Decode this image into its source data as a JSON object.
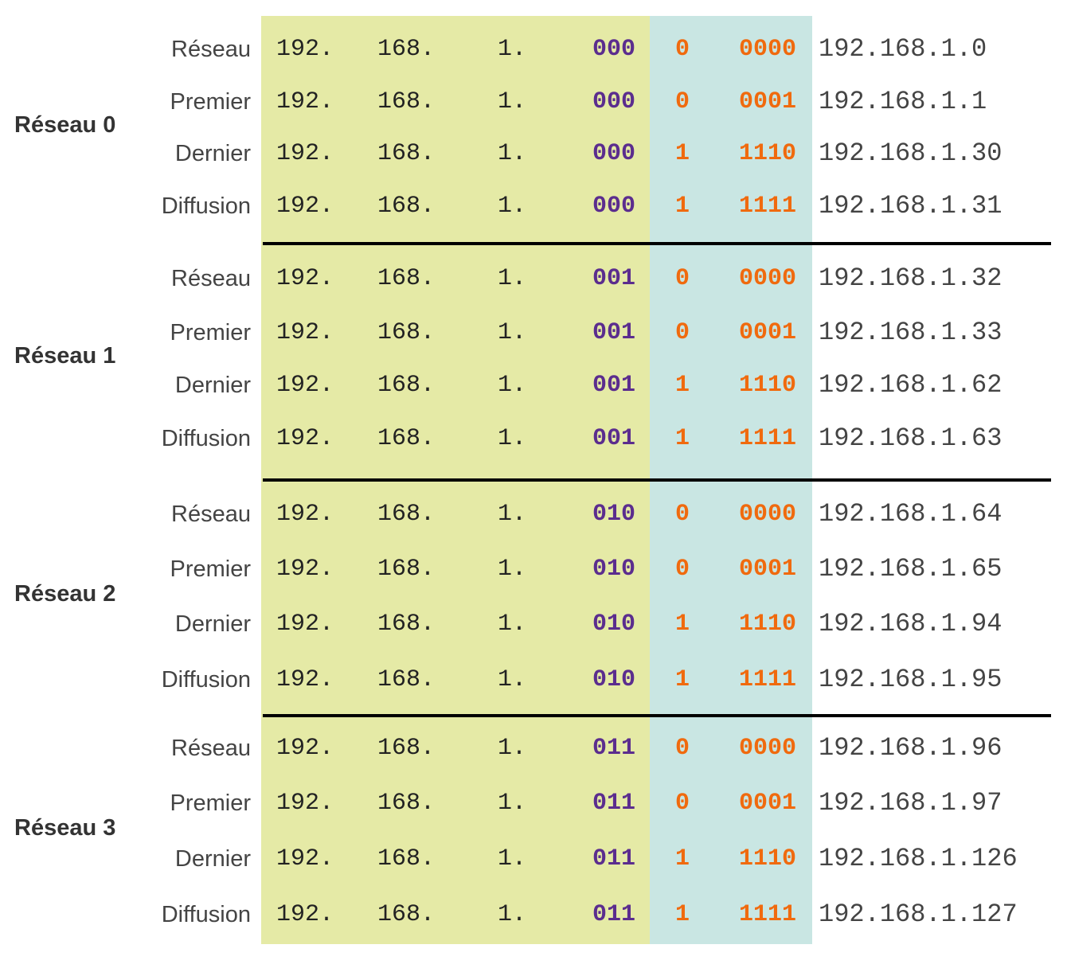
{
  "colors": {
    "network_bg": "#e5eaa6",
    "subnet_bg": "#c9e6e3",
    "network_bits": "#5b2d8e",
    "host_bits": "#f06a0e"
  },
  "groups": [
    {
      "label": "Réseau 0",
      "rows": [
        {
          "label": "Réseau",
          "o1": "192.",
          "o2": "168.",
          "o3": "1.",
          "net": "000",
          "sub": "0",
          "host": "0000",
          "dec": "192.168.1.0"
        },
        {
          "label": "Premier",
          "o1": "192.",
          "o2": "168.",
          "o3": "1.",
          "net": "000",
          "sub": "0",
          "host": "0001",
          "dec": "192.168.1.1"
        },
        {
          "label": "Dernier",
          "o1": "192.",
          "o2": "168.",
          "o3": "1.",
          "net": "000",
          "sub": "1",
          "host": "1110",
          "dec": "192.168.1.30"
        },
        {
          "label": "Diffusion",
          "o1": "192.",
          "o2": "168.",
          "o3": "1.",
          "net": "000",
          "sub": "1",
          "host": "1111",
          "dec": "192.168.1.31"
        }
      ]
    },
    {
      "label": "Réseau 1",
      "rows": [
        {
          "label": "Réseau",
          "o1": "192.",
          "o2": "168.",
          "o3": "1.",
          "net": "001",
          "sub": "0",
          "host": "0000",
          "dec": "192.168.1.32"
        },
        {
          "label": "Premier",
          "o1": "192.",
          "o2": "168.",
          "o3": "1.",
          "net": "001",
          "sub": "0",
          "host": "0001",
          "dec": "192.168.1.33"
        },
        {
          "label": "Dernier",
          "o1": "192.",
          "o2": "168.",
          "o3": "1.",
          "net": "001",
          "sub": "1",
          "host": "1110",
          "dec": "192.168.1.62"
        },
        {
          "label": "Diffusion",
          "o1": "192.",
          "o2": "168.",
          "o3": "1.",
          "net": "001",
          "sub": "1",
          "host": "1111",
          "dec": "192.168.1.63"
        }
      ]
    },
    {
      "label": "Réseau 2",
      "rows": [
        {
          "label": "Réseau",
          "o1": "192.",
          "o2": "168.",
          "o3": "1.",
          "net": "010",
          "sub": "0",
          "host": "0000",
          "dec": "192.168.1.64"
        },
        {
          "label": "Premier",
          "o1": "192.",
          "o2": "168.",
          "o3": "1.",
          "net": "010",
          "sub": "0",
          "host": "0001",
          "dec": "192.168.1.65"
        },
        {
          "label": "Dernier",
          "o1": "192.",
          "o2": "168.",
          "o3": "1.",
          "net": "010",
          "sub": "1",
          "host": "1110",
          "dec": "192.168.1.94"
        },
        {
          "label": "Diffusion",
          "o1": "192.",
          "o2": "168.",
          "o3": "1.",
          "net": "010",
          "sub": "1",
          "host": "1111",
          "dec": "192.168.1.95"
        }
      ]
    },
    {
      "label": "Réseau 3",
      "rows": [
        {
          "label": "Réseau",
          "o1": "192.",
          "o2": "168.",
          "o3": "1.",
          "net": "011",
          "sub": "0",
          "host": "0000",
          "dec": "192.168.1.96"
        },
        {
          "label": "Premier",
          "o1": "192.",
          "o2": "168.",
          "o3": "1.",
          "net": "011",
          "sub": "0",
          "host": "0001",
          "dec": "192.168.1.97"
        },
        {
          "label": "Dernier",
          "o1": "192.",
          "o2": "168.",
          "o3": "1.",
          "net": "011",
          "sub": "1",
          "host": "1110",
          "dec": "192.168.1.126"
        },
        {
          "label": "Diffusion",
          "o1": "192.",
          "o2": "168.",
          "o3": "1.",
          "net": "011",
          "sub": "1",
          "host": "1111",
          "dec": "192.168.1.127"
        }
      ]
    }
  ]
}
